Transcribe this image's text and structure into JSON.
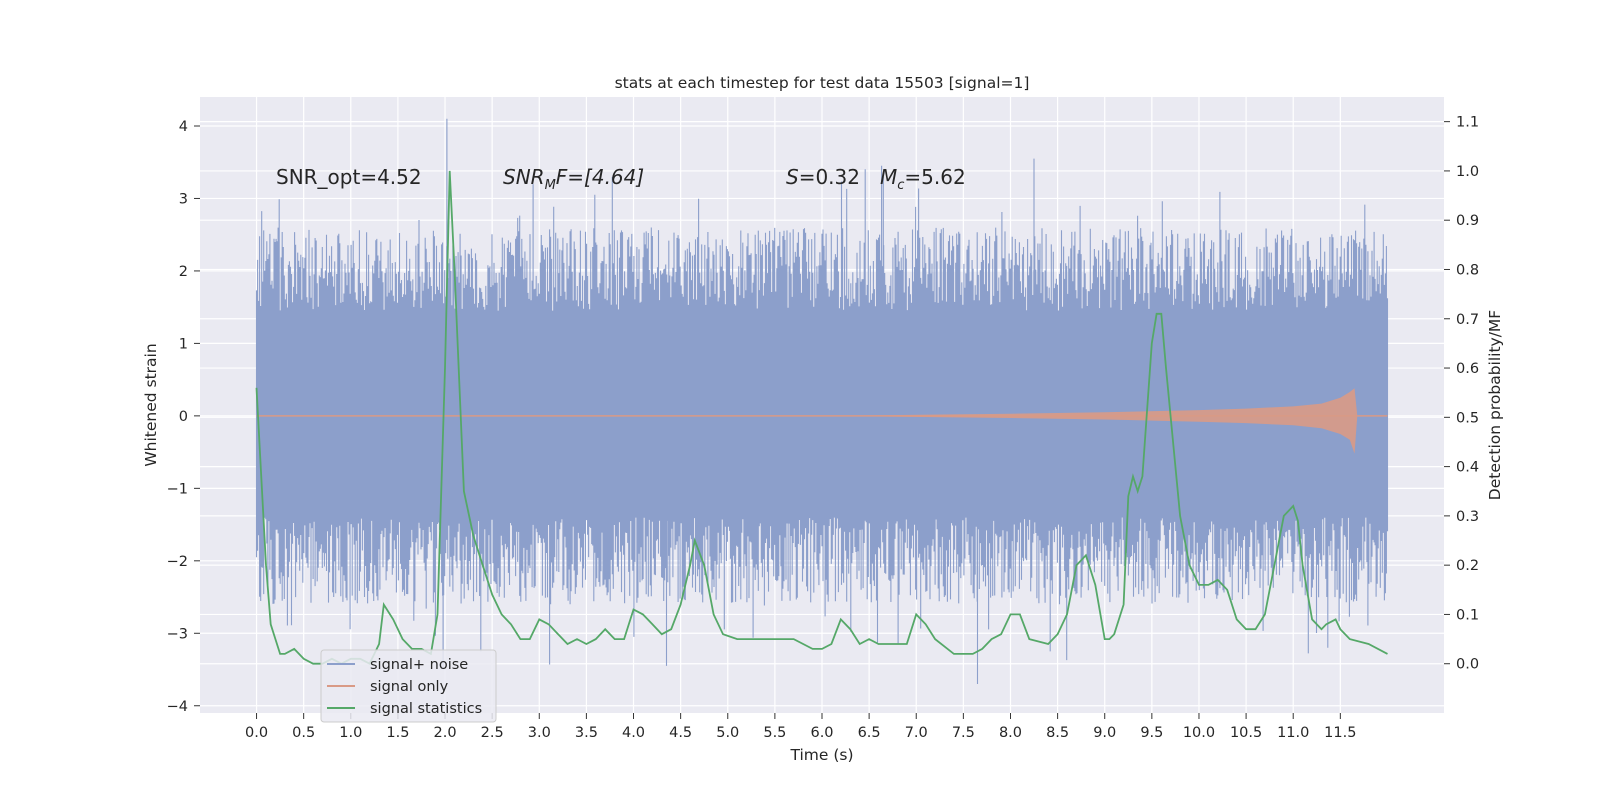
{
  "chart_data": {
    "type": "line",
    "title": "stats at each timestep for test data 15503 [signal=1]",
    "xlabel": "Time (s)",
    "ylabel": "Whitened strain",
    "y2label": "Detection probability/MF",
    "xlim": [
      -0.6,
      12.6
    ],
    "ylim": [
      -4.1,
      4.4
    ],
    "y2lim": [
      -0.1,
      1.15
    ],
    "xticks": [
      0.0,
      0.5,
      1.0,
      1.5,
      2.0,
      2.5,
      3.0,
      3.5,
      4.0,
      4.5,
      5.0,
      5.5,
      6.0,
      6.5,
      7.0,
      7.5,
      8.0,
      8.5,
      9.0,
      9.5,
      10.0,
      10.5,
      11.0,
      11.5
    ],
    "xtick_labels": [
      "0.0",
      "0.5",
      "1.0",
      "1.5",
      "2.0",
      "2.5",
      "3.0",
      "3.5",
      "4.0",
      "4.5",
      "5.0",
      "5.5",
      "6.0",
      "6.5",
      "7.0",
      "7.5",
      "8.0",
      "8.5",
      "9.0",
      "9.5",
      "10.0",
      "10.5",
      "11.0",
      "11.5"
    ],
    "yticks": [
      4,
      3,
      2,
      1,
      0,
      -1,
      -2,
      -3,
      -4
    ],
    "ytick_labels": [
      "4",
      "3",
      "2",
      "1",
      "0",
      "−1",
      "−2",
      "−3",
      "−4"
    ],
    "y2ticks": [
      1.1,
      1.0,
      0.9,
      0.8,
      0.7,
      0.6,
      0.5,
      0.4,
      0.3,
      0.2,
      0.1,
      0.0
    ],
    "y2tick_labels": [
      "1.1",
      "1.0",
      "0.9",
      "0.8",
      "0.7",
      "0.6",
      "0.5",
      "0.4",
      "0.3",
      "0.2",
      "0.1",
      "0.0"
    ],
    "annotations": {
      "snr_opt": "SNR_opt=4.52",
      "snr_mf_main": "SNR",
      "snr_mf_sub": "M",
      "snr_mf_rest": "F=[4.64]",
      "s_main": "S",
      "s_rest": "=0.32",
      "mc_main": "M",
      "mc_sub": "c",
      "mc_rest": "=5.62"
    },
    "legend": {
      "placement": "lower-left",
      "entries": [
        "signal+ noise",
        "signal only",
        "signal statistics"
      ]
    },
    "series": [
      {
        "name": "signal+ noise",
        "color": "#8c9fcb",
        "axis": "left",
        "x_range": [
          0.0,
          12.0
        ],
        "band_core": [
          -1.4,
          1.45
        ],
        "typical_extremes": [
          -2.6,
          2.6
        ],
        "max": 4.1,
        "min": -3.7
      },
      {
        "name": "signal only",
        "color": "#d99a86",
        "axis": "left",
        "x": [
          0.0,
          6.0,
          8.0,
          9.0,
          10.0,
          10.5,
          11.0,
          11.3,
          11.5,
          11.6,
          11.65,
          11.68
        ],
        "upper": [
          0.0,
          0.0,
          0.03,
          0.05,
          0.08,
          0.1,
          0.13,
          0.17,
          0.25,
          0.33,
          0.38,
          0.0
        ],
        "lower": [
          0.0,
          0.0,
          -0.03,
          -0.05,
          -0.08,
          -0.1,
          -0.13,
          -0.17,
          -0.25,
          -0.33,
          -0.52,
          0.0
        ]
      },
      {
        "name": "signal statistics",
        "color": "#55a868",
        "axis": "right",
        "x": [
          0.0,
          0.1,
          0.15,
          0.25,
          0.3,
          0.4,
          0.5,
          0.6,
          0.7,
          0.8,
          0.9,
          1.0,
          1.1,
          1.2,
          1.3,
          1.35,
          1.45,
          1.55,
          1.65,
          1.75,
          1.85,
          1.92,
          2.0,
          2.05,
          2.1,
          2.2,
          2.3,
          2.4,
          2.5,
          2.6,
          2.7,
          2.8,
          2.9,
          3.0,
          3.1,
          3.2,
          3.3,
          3.4,
          3.5,
          3.6,
          3.7,
          3.8,
          3.9,
          4.0,
          4.1,
          4.2,
          4.3,
          4.4,
          4.5,
          4.6,
          4.65,
          4.75,
          4.85,
          4.95,
          5.1,
          5.3,
          5.5,
          5.7,
          5.9,
          6.0,
          6.1,
          6.2,
          6.3,
          6.4,
          6.5,
          6.6,
          6.8,
          6.9,
          7.0,
          7.1,
          7.2,
          7.4,
          7.6,
          7.7,
          7.8,
          7.9,
          8.0,
          8.1,
          8.2,
          8.4,
          8.5,
          8.6,
          8.7,
          8.8,
          8.9,
          9.0,
          9.05,
          9.1,
          9.2,
          9.25,
          9.3,
          9.35,
          9.4,
          9.5,
          9.55,
          9.6,
          9.65,
          9.8,
          9.9,
          10.0,
          10.1,
          10.2,
          10.3,
          10.4,
          10.5,
          10.6,
          10.7,
          10.8,
          10.9,
          11.0,
          11.05,
          11.1,
          11.2,
          11.3,
          11.35,
          11.45,
          11.5,
          11.6,
          11.8,
          12.0
        ],
        "y": [
          0.56,
          0.2,
          0.08,
          0.02,
          0.02,
          0.03,
          0.01,
          0.0,
          0.0,
          0.01,
          0.0,
          0.01,
          0.01,
          0.0,
          0.04,
          0.12,
          0.09,
          0.05,
          0.03,
          0.03,
          0.02,
          0.1,
          0.6,
          1.0,
          0.8,
          0.35,
          0.26,
          0.2,
          0.14,
          0.1,
          0.08,
          0.05,
          0.05,
          0.09,
          0.08,
          0.06,
          0.04,
          0.05,
          0.04,
          0.05,
          0.07,
          0.05,
          0.05,
          0.11,
          0.1,
          0.08,
          0.06,
          0.07,
          0.12,
          0.2,
          0.25,
          0.2,
          0.1,
          0.06,
          0.05,
          0.05,
          0.05,
          0.05,
          0.03,
          0.03,
          0.04,
          0.09,
          0.07,
          0.04,
          0.05,
          0.04,
          0.04,
          0.04,
          0.1,
          0.08,
          0.05,
          0.02,
          0.02,
          0.03,
          0.05,
          0.06,
          0.1,
          0.1,
          0.05,
          0.04,
          0.06,
          0.1,
          0.2,
          0.22,
          0.16,
          0.05,
          0.05,
          0.06,
          0.12,
          0.34,
          0.38,
          0.35,
          0.38,
          0.65,
          0.71,
          0.71,
          0.6,
          0.3,
          0.2,
          0.16,
          0.16,
          0.17,
          0.15,
          0.09,
          0.07,
          0.07,
          0.1,
          0.2,
          0.3,
          0.32,
          0.29,
          0.2,
          0.09,
          0.07,
          0.08,
          0.09,
          0.07,
          0.05,
          0.04,
          0.02
        ]
      }
    ]
  }
}
